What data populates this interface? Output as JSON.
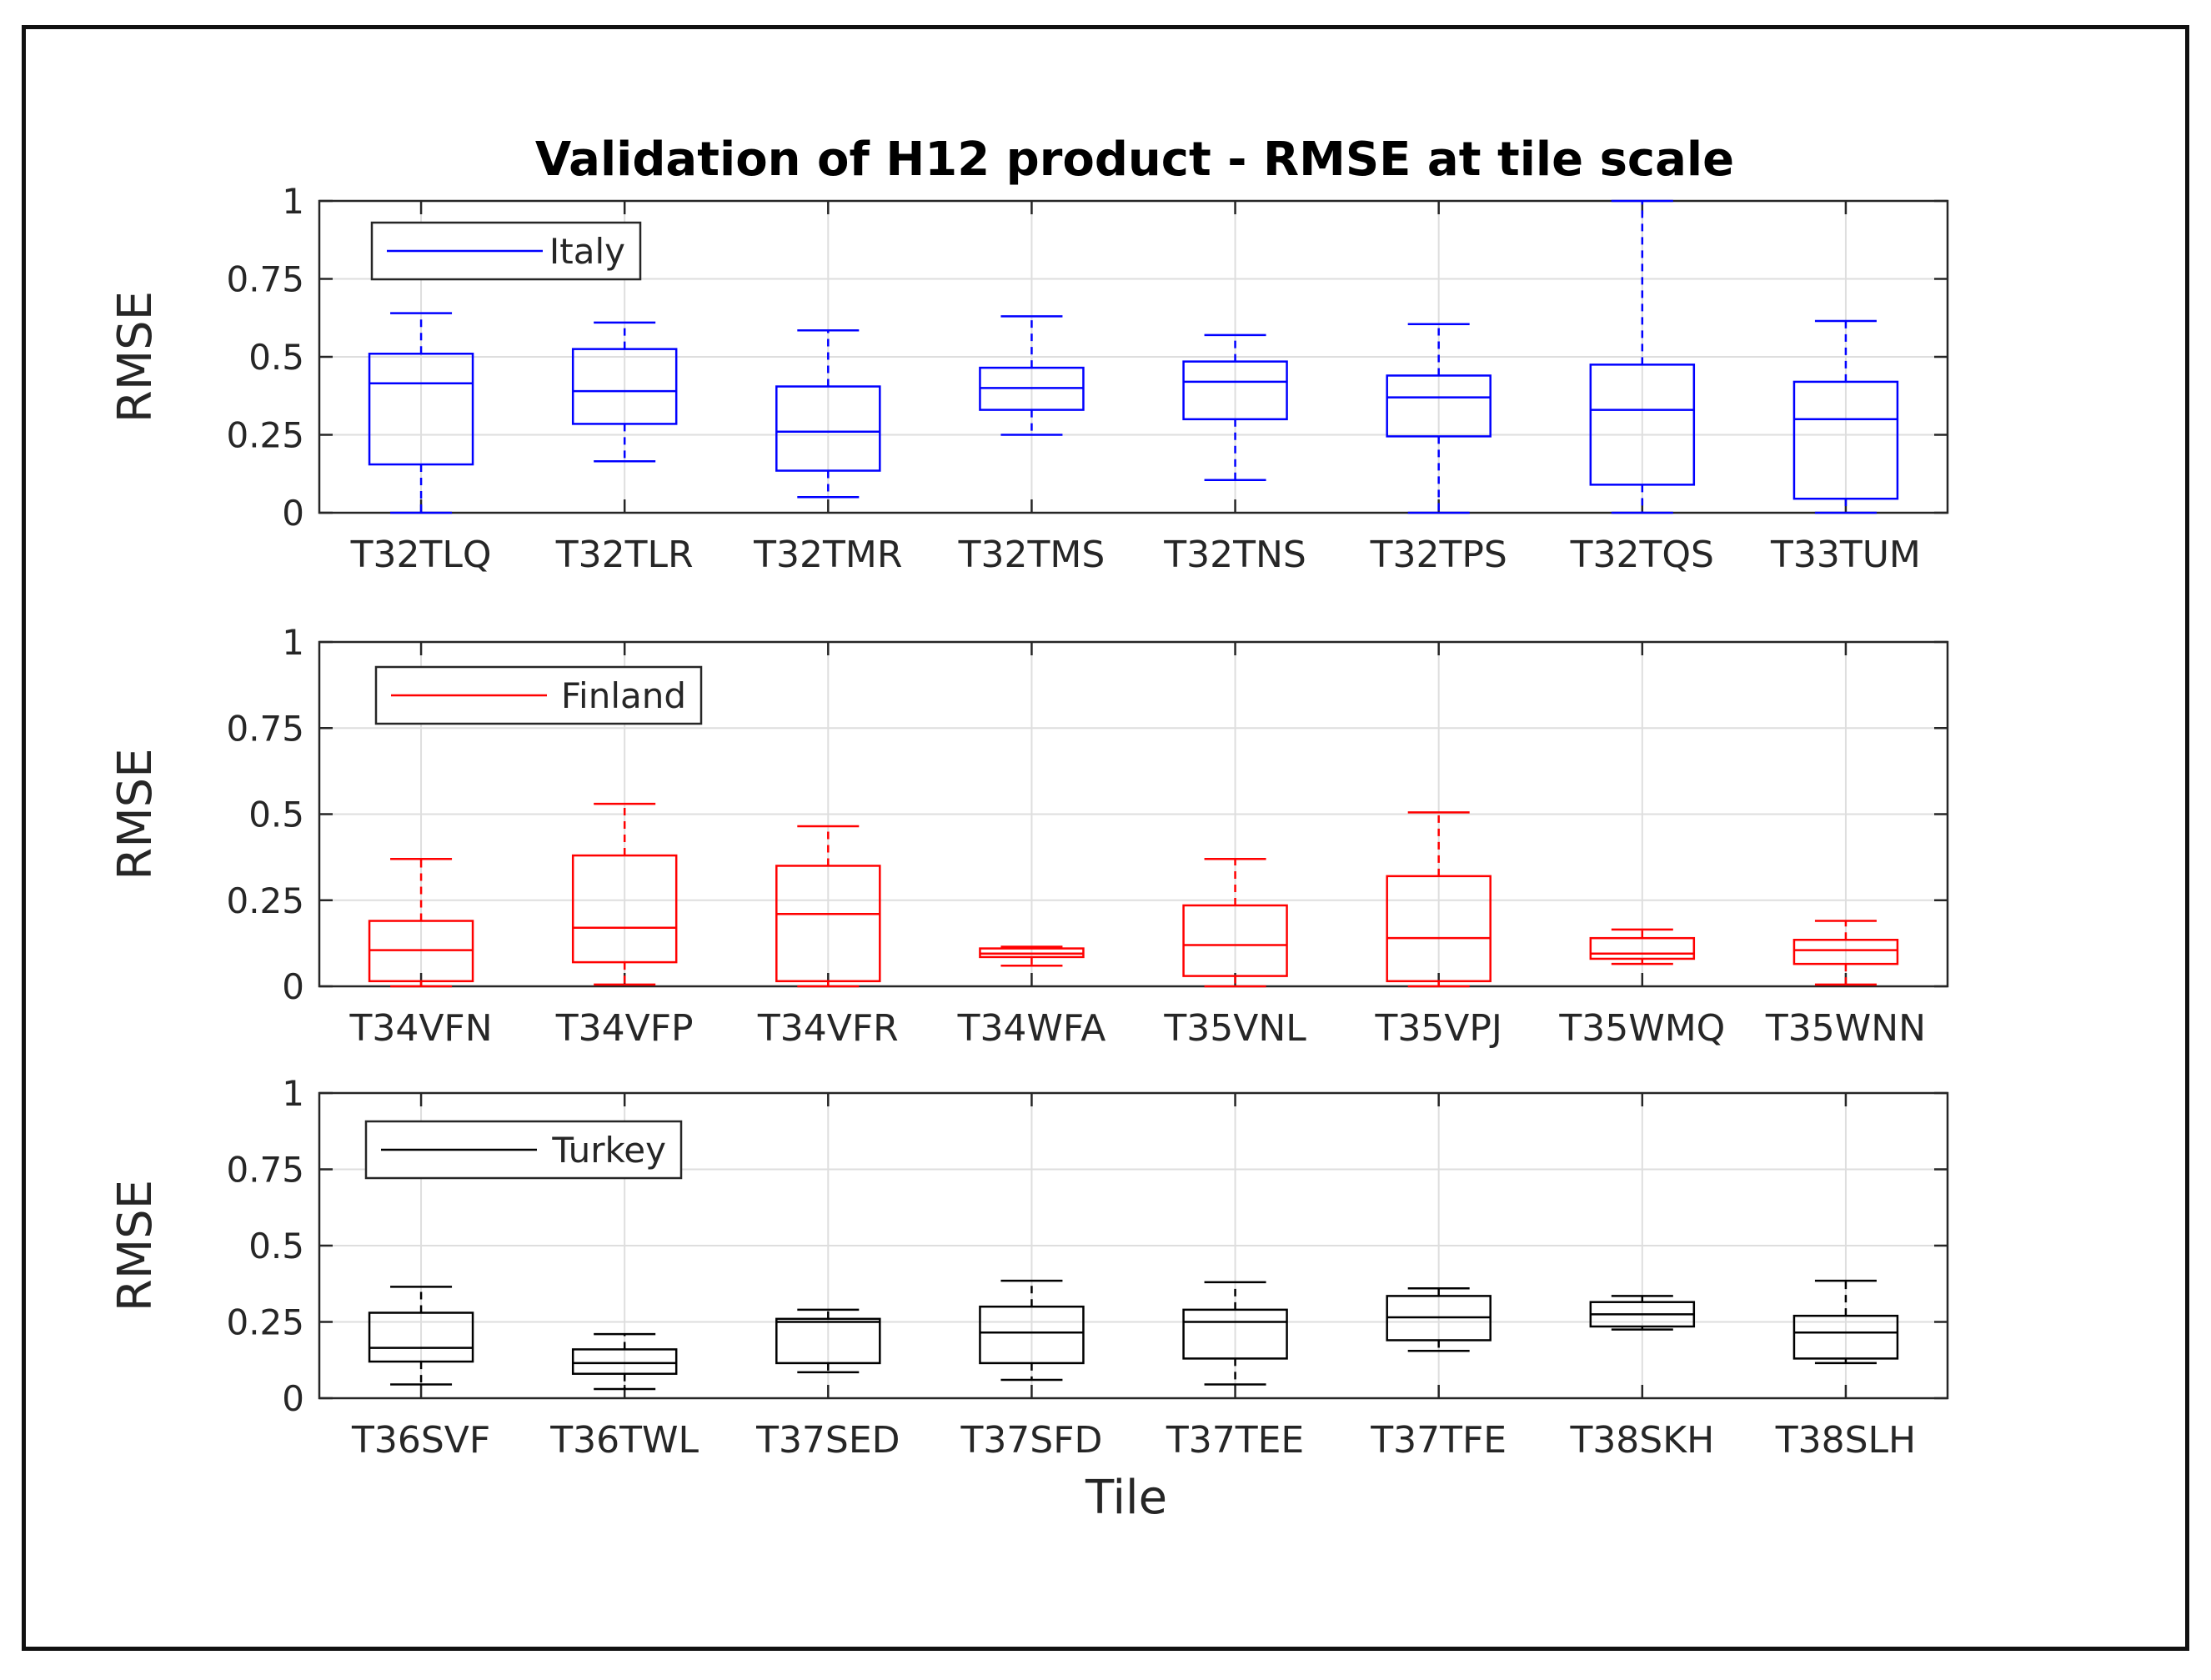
{
  "chart_data": {
    "type": "boxplot",
    "title": "Validation of H12 product - RMSE at tile scale",
    "xlabel": "Tile",
    "panels": [
      {
        "legend": "Italy",
        "color": "#0000ff",
        "ylabel": "RMSE",
        "ylim": [
          0,
          1
        ],
        "yticks": [
          0,
          0.25,
          0.5,
          0.75,
          1
        ],
        "ytick_labels": [
          "0",
          "0.25",
          "0.5",
          "0.75",
          "1"
        ],
        "categories": [
          "T32TLQ",
          "T32TLR",
          "T32TMR",
          "T32TMS",
          "T32TNS",
          "T32TPS",
          "T32TQS",
          "T33TUM"
        ],
        "boxes": [
          {
            "min": 0.0,
            "q1": 0.155,
            "median": 0.415,
            "q3": 0.51,
            "max": 0.64
          },
          {
            "min": 0.165,
            "q1": 0.285,
            "median": 0.39,
            "q3": 0.525,
            "max": 0.61
          },
          {
            "min": 0.05,
            "q1": 0.135,
            "median": 0.26,
            "q3": 0.405,
            "max": 0.585
          },
          {
            "min": 0.25,
            "q1": 0.33,
            "median": 0.4,
            "q3": 0.465,
            "max": 0.63
          },
          {
            "min": 0.105,
            "q1": 0.3,
            "median": 0.42,
            "q3": 0.485,
            "max": 0.57
          },
          {
            "min": 0.0,
            "q1": 0.245,
            "median": 0.37,
            "q3": 0.44,
            "max": 0.605
          },
          {
            "min": 0.0,
            "q1": 0.09,
            "median": 0.33,
            "q3": 0.475,
            "max": 1.0
          },
          {
            "min": 0.0,
            "q1": 0.045,
            "median": 0.3,
            "q3": 0.42,
            "max": 0.615
          }
        ]
      },
      {
        "legend": "Finland",
        "color": "#ff0000",
        "ylabel": "RMSE",
        "ylim": [
          0,
          1
        ],
        "yticks": [
          0,
          0.25,
          0.5,
          0.75,
          1
        ],
        "ytick_labels": [
          "0",
          "0.25",
          "0.5",
          "0.75",
          "1"
        ],
        "categories": [
          "T34VFN",
          "T34VFP",
          "T34VFR",
          "T34WFA",
          "T35VNL",
          "T35VPJ",
          "T35WMQ",
          "T35WNN"
        ],
        "boxes": [
          {
            "min": 0.0,
            "q1": 0.015,
            "median": 0.105,
            "q3": 0.19,
            "max": 0.37
          },
          {
            "min": 0.005,
            "q1": 0.07,
            "median": 0.17,
            "q3": 0.38,
            "max": 0.53
          },
          {
            "min": 0.0,
            "q1": 0.015,
            "median": 0.21,
            "q3": 0.35,
            "max": 0.465
          },
          {
            "min": 0.06,
            "q1": 0.085,
            "median": 0.095,
            "q3": 0.11,
            "max": 0.115
          },
          {
            "min": 0.0,
            "q1": 0.03,
            "median": 0.12,
            "q3": 0.235,
            "max": 0.37
          },
          {
            "min": 0.0,
            "q1": 0.015,
            "median": 0.14,
            "q3": 0.32,
            "max": 0.505
          },
          {
            "min": 0.065,
            "q1": 0.08,
            "median": 0.095,
            "q3": 0.14,
            "max": 0.165
          },
          {
            "min": 0.005,
            "q1": 0.065,
            "median": 0.105,
            "q3": 0.135,
            "max": 0.19
          }
        ]
      },
      {
        "legend": "Turkey",
        "color": "#000000",
        "ylabel": "RMSE",
        "ylim": [
          0,
          1
        ],
        "yticks": [
          0,
          0.25,
          0.5,
          0.75,
          1
        ],
        "ytick_labels": [
          "0",
          "0.25",
          "0.5",
          "0.75",
          "1"
        ],
        "categories": [
          "T36SVF",
          "T36TWL",
          "T37SED",
          "T37SFD",
          "T37TEE",
          "T37TFE",
          "T38SKH",
          "T38SLH"
        ],
        "boxes": [
          {
            "min": 0.045,
            "q1": 0.12,
            "median": 0.165,
            "q3": 0.28,
            "max": 0.365
          },
          {
            "min": 0.03,
            "q1": 0.08,
            "median": 0.115,
            "q3": 0.16,
            "max": 0.21
          },
          {
            "min": 0.085,
            "q1": 0.115,
            "median": 0.25,
            "q3": 0.26,
            "max": 0.29
          },
          {
            "min": 0.06,
            "q1": 0.115,
            "median": 0.215,
            "q3": 0.3,
            "max": 0.385
          },
          {
            "min": 0.045,
            "q1": 0.13,
            "median": 0.25,
            "q3": 0.29,
            "max": 0.38
          },
          {
            "min": 0.155,
            "q1": 0.19,
            "median": 0.265,
            "q3": 0.335,
            "max": 0.36
          },
          {
            "min": 0.225,
            "q1": 0.235,
            "median": 0.275,
            "q3": 0.315,
            "max": 0.335
          },
          {
            "min": 0.115,
            "q1": 0.13,
            "median": 0.215,
            "q3": 0.27,
            "max": 0.385
          }
        ]
      }
    ]
  }
}
